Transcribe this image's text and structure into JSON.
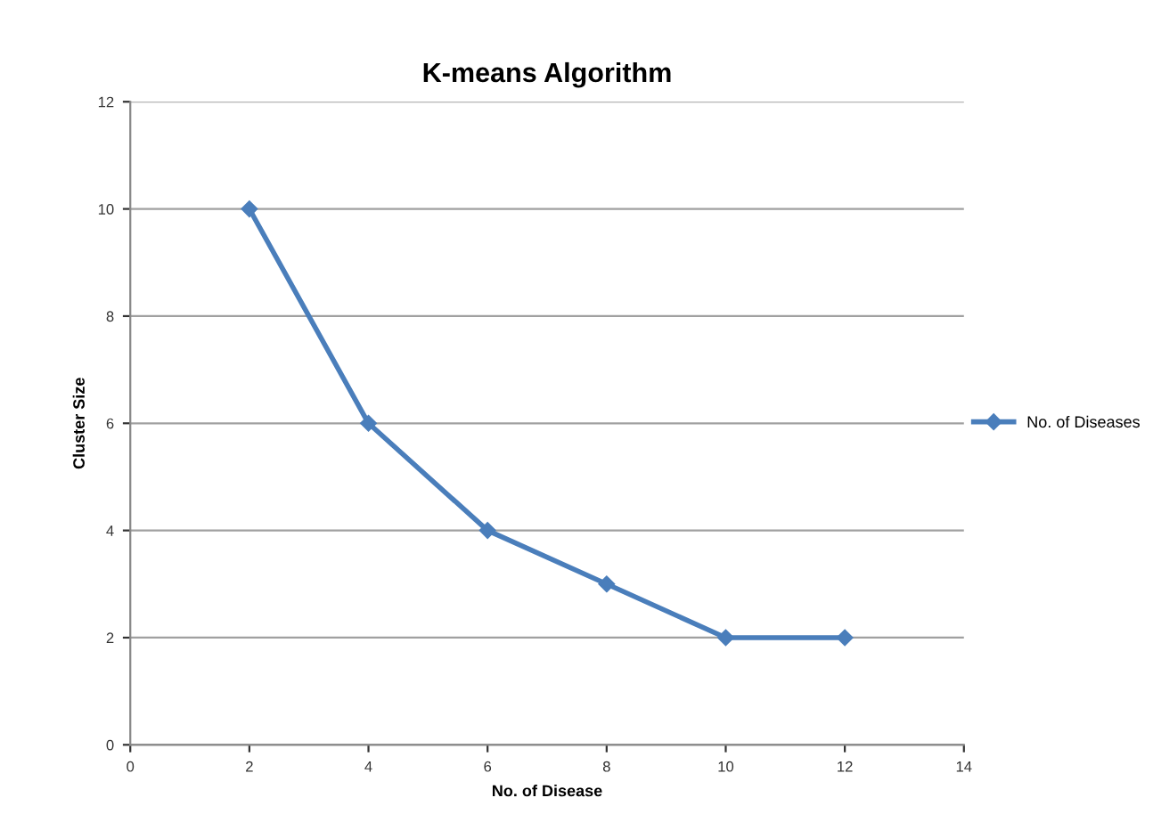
{
  "chart_data": {
    "type": "line",
    "title": "K-means Algorithm",
    "xlabel": "No. of Disease",
    "ylabel": "Cluster Size",
    "x": [
      2,
      4,
      6,
      8,
      10,
      12
    ],
    "series": [
      {
        "name": "No. of Diseases",
        "color": "#4a7ebb",
        "values": [
          10,
          6,
          4,
          3,
          2,
          2
        ]
      }
    ],
    "xlim": [
      0,
      14
    ],
    "xticks": [
      0,
      2,
      4,
      6,
      8,
      10,
      12,
      14
    ],
    "ylim": [
      0,
      12
    ],
    "yticks": [
      0,
      2,
      4,
      6,
      8,
      10,
      12
    ],
    "grid": "y",
    "legend": "right",
    "marker": "diamond",
    "line_style": "solid"
  }
}
